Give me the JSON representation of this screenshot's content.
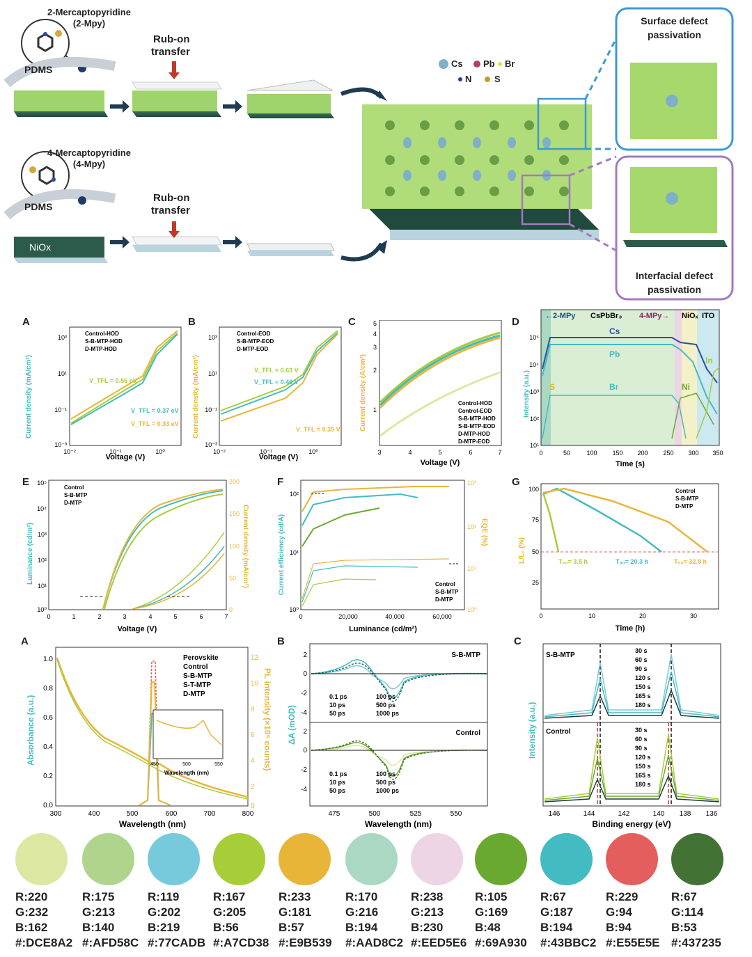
{
  "schematic": {
    "mol1_name": "2-Mercaptopyridine",
    "mol1_abbr": "(2-Mpy)",
    "mol2_name": "4-Mercaptopyridine",
    "mol2_abbr": "(4-Mpy)",
    "pdms": "PDMS",
    "rub_on": "Rub-on",
    "transfer": "transfer",
    "niox": "NiOx",
    "legend": [
      "Cs",
      "Pb",
      "Br",
      "N",
      "S"
    ],
    "surface_title_1": "Surface defect",
    "surface_title_2": "passivation",
    "interface_title_1": "Interfacial defect",
    "interface_title_2": "passivation"
  },
  "colors": {
    "c1": "#DCE8A2",
    "c2": "#AFD58C",
    "c3": "#77CADB",
    "c4": "#A7CD38",
    "c5": "#E9B539",
    "c6": "#AAD8C2",
    "c7": "#EED5E6",
    "c8": "#69A930",
    "c9": "#43BBC2",
    "c10": "#E55E5E",
    "c11": "#437235"
  },
  "panels": {
    "A1": {
      "letter": "A",
      "ylabel": "Current density (mA/cm²)",
      "xlabel": "Voltage (V)",
      "legend": [
        "Control-HOD",
        "S-B-MTP-HOD",
        "D-MTP-HOD"
      ],
      "ann1": "V_TFL = 0.56 eV",
      "ann2": "V_TFL = 0.37 eV",
      "ann3": "V_TFL = 0.33 eV",
      "xticks": [
        "10⁻²",
        "10⁻¹",
        "10⁰"
      ],
      "yticks": [
        "10³",
        "10¹",
        "10⁻¹",
        "10⁻³"
      ]
    },
    "B1": {
      "letter": "B",
      "ylabel": "Current density (mA/cm²)",
      "xlabel": "Voltage (V)",
      "legend": [
        "Control-EOD",
        "S-B-MTP-EOD",
        "D-MTP-EOD"
      ],
      "ann1": "V_TFL = 0.63 V",
      "ann2": "V_TFL = 0.46 V",
      "ann3": "V_TFL = 0.35 V",
      "xticks": [
        "10⁻²",
        "10⁻¹",
        "10⁰"
      ],
      "yticks": [
        "10³",
        "10¹",
        "10⁻¹",
        "10⁻³"
      ]
    },
    "C1": {
      "letter": "C",
      "ylabel": "Current density (A/cm²)",
      "xlabel": "Voltage (V)",
      "legend": [
        "Control-HOD",
        "Control-EOD",
        "S-B-MTP-HOD",
        "S-B-MTP-EOD",
        "D-MTP-HOD",
        "D-MTP-EOD"
      ],
      "xticks": [
        "3",
        "4",
        "5",
        "6",
        "7"
      ],
      "yticks": [
        "5",
        "4",
        "3",
        "2",
        "1"
      ]
    },
    "D1": {
      "letter": "D",
      "ylabel": "Intensity (a.u.)",
      "xlabel": "Time (s)",
      "header": [
        "←2-MPy",
        "CsPbBr₃",
        "4-MPy→",
        "NiOₓ",
        "ITO"
      ],
      "labels": [
        "Cs",
        "Pb",
        "Br",
        "S",
        "Ni",
        "In"
      ],
      "xticks": [
        "0",
        "50",
        "100",
        "150",
        "200",
        "250",
        "300",
        "350"
      ],
      "yticks": [
        "10⁵",
        "10⁴",
        "10³",
        "10²",
        "10¹"
      ]
    },
    "E1": {
      "letter": "E",
      "ylabel": "Luminance (cd/m²)",
      "y2label": "Current density (mA/cm²)",
      "xlabel": "Voltage (V)",
      "legend": [
        "Control",
        "S-B-MTP",
        "D-MTP"
      ],
      "xticks": [
        "0",
        "1",
        "2",
        "3",
        "4",
        "5",
        "6",
        "7"
      ],
      "yticks": [
        "10⁵",
        "10⁴",
        "10³",
        "10²",
        "10¹",
        "10⁰"
      ],
      "y2ticks": [
        "200",
        "150",
        "100",
        "50",
        "0"
      ]
    },
    "F1": {
      "letter": "F",
      "ylabel": "Current efficiency (cd/A)",
      "y2label": "EQE (%)",
      "xlabel": "Luminance (cd/m²)",
      "legend": [
        "Control",
        "S-B-MTP",
        "D-MTP"
      ],
      "xticks": [
        "0",
        "20,000",
        "40,000",
        "60,000"
      ],
      "yticks": [
        "10²",
        "10¹",
        "10⁰"
      ],
      "y2ticks": [
        "10³",
        "10²",
        "10¹",
        "10⁰"
      ]
    },
    "G1": {
      "letter": "G",
      "ylabel": "L/L₀ (%)",
      "xlabel": "Time (h)",
      "legend": [
        "Control",
        "S-B-MTP",
        "D-MTP"
      ],
      "t1": "T₅₀= 3.5 h",
      "t2": "T₅₀= 20.3 h",
      "t3": "T₅₀= 32.8 h",
      "xticks": [
        "0",
        "10",
        "20",
        "30"
      ],
      "yticks": [
        "100",
        "75",
        "50",
        "25"
      ]
    },
    "A2": {
      "letter": "A",
      "ylabel": "Absorbance (a.u.)",
      "y2label": "PL intensity (×10⁶ counts)",
      "xlabel": "Wavelength (nm)",
      "legend": [
        "Perovskite",
        "Control",
        "S-B-MTP",
        "S-T-MTP",
        "D-MTP"
      ],
      "inset_xlabel": "Wavelength (nm)",
      "inset_xticks": [
        "450",
        "500",
        "550"
      ],
      "xticks": [
        "300",
        "400",
        "500",
        "600",
        "700",
        "800"
      ],
      "yticks": [
        "1.0",
        "0.8",
        "0.6",
        "0.4",
        "0.2",
        "0.0"
      ],
      "y2ticks": [
        "12",
        "10",
        "8",
        "6",
        "4",
        "2",
        "0"
      ]
    },
    "B2": {
      "letter": "B",
      "ylabel": "ΔA (mOD)",
      "xlabel": "Wavelength (nm)",
      "top_title": "S-B-MTP",
      "bot_title": "Control",
      "legend": [
        "0.1 ps",
        "10 ps",
        "50 ps",
        "100 ps",
        "500 ps",
        "1000 ps"
      ],
      "xticks": [
        "475",
        "500",
        "525",
        "550"
      ],
      "yticks": [
        "2",
        "0",
        "-2",
        "-4"
      ]
    },
    "C2": {
      "letter": "C",
      "ylabel": "Intensity (a.u.)",
      "xlabel": "Binding energy (eV)",
      "top_title": "S-B-MTP",
      "bot_title": "Control",
      "legend": [
        "30 s",
        "60 s",
        "90 s",
        "120 s",
        "150 s",
        "165 s",
        "180 s"
      ],
      "xticks": [
        "146",
        "144",
        "142",
        "140",
        "138",
        "136"
      ]
    }
  },
  "swatches": [
    {
      "r": "R:220",
      "g": "G:232",
      "b": "B:162",
      "hex": "#:DCE8A2",
      "color": "#DCE8A2"
    },
    {
      "r": "R:175",
      "g": "G:213",
      "b": "B:140",
      "hex": "#:AFD58C",
      "color": "#AFD58C"
    },
    {
      "r": "R:119",
      "g": "G:202",
      "b": "B:219",
      "hex": "#:77CADB",
      "color": "#77CADB"
    },
    {
      "r": "R:167",
      "g": "G:205",
      "b": "B:56",
      "hex": "#:A7CD38",
      "color": "#A7CD38"
    },
    {
      "r": "R:233",
      "g": "G:181",
      "b": "B:57",
      "hex": "#:E9B539",
      "color": "#E9B539"
    },
    {
      "r": "R:170",
      "g": "G:216",
      "b": "B:194",
      "hex": "#:AAD8C2",
      "color": "#AAD8C2"
    },
    {
      "r": "R:238",
      "g": "G:213",
      "b": "B:230",
      "hex": "#:EED5E6",
      "color": "#EED5E6"
    },
    {
      "r": "R:105",
      "g": "G:169",
      "b": "B:48",
      "hex": "#:69A930",
      "color": "#69A930"
    },
    {
      "r": "R:67",
      "g": "G:187",
      "b": "B:194",
      "hex": "#:43BBC2",
      "color": "#43BBC2"
    },
    {
      "r": "R:229",
      "g": "G:94",
      "b": "B:94",
      "hex": "#:E55E5E",
      "color": "#E55E5E"
    },
    {
      "r": "R:67",
      "g": "G:114",
      "b": "B:53",
      "hex": "#:437235",
      "color": "#437235"
    }
  ]
}
